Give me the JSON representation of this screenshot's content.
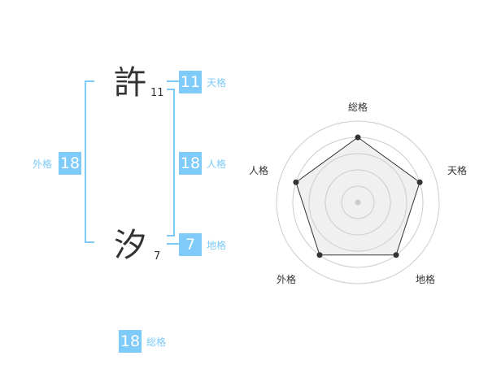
{
  "name": {
    "chars": [
      {
        "char": "許",
        "strokes": "11"
      },
      {
        "char": "汐",
        "strokes": "7"
      }
    ]
  },
  "fortune": {
    "tenkaku": {
      "label": "天格",
      "value": "11"
    },
    "jinkaku": {
      "label": "人格",
      "value": "18"
    },
    "chikaku": {
      "label": "地格",
      "value": "7"
    },
    "gaikaku": {
      "label": "外格",
      "value": "18"
    },
    "soukaku": {
      "label": "総格",
      "value": "18"
    }
  },
  "radar": {
    "axes": [
      "総格",
      "天格",
      "地格",
      "外格",
      "人格"
    ],
    "values": [
      4,
      4,
      4,
      4,
      4
    ],
    "max": 5,
    "colors": {
      "ring": "#cccccc",
      "fill": "#f0f0f0",
      "line": "#333333",
      "center": "#cccccc"
    }
  },
  "accent": "#7ecaf8"
}
